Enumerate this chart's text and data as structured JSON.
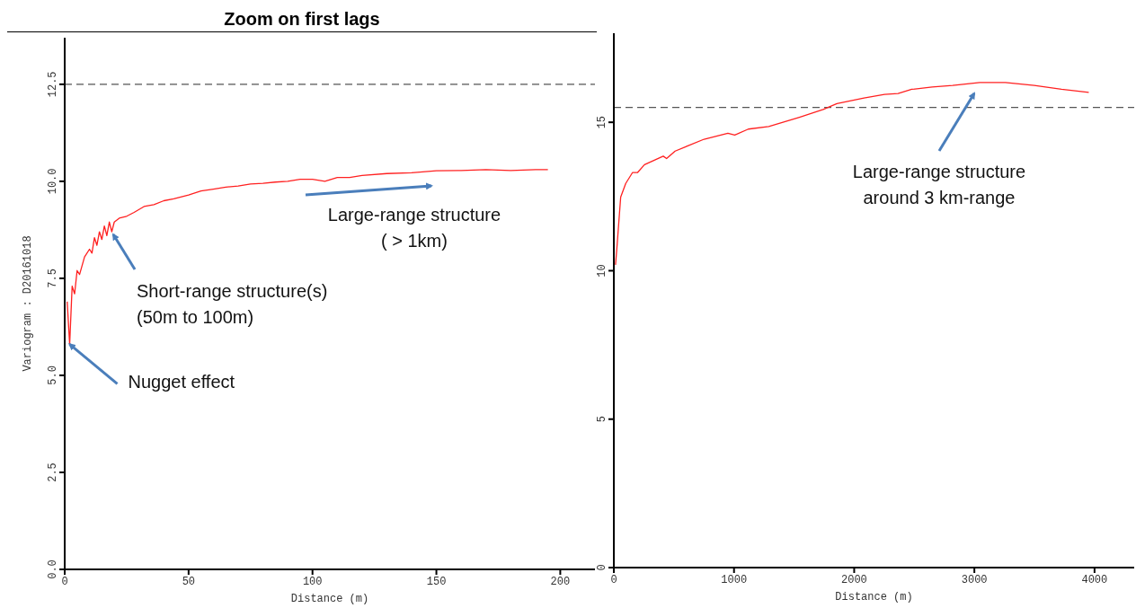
{
  "chart_data": [
    {
      "type": "line",
      "title": "Zoom on first lags",
      "xlabel": "Distance (m)",
      "ylabel": "Variogram : D20161018",
      "xlim": [
        0,
        214
      ],
      "ylim": [
        0,
        13.7
      ],
      "xticks": [
        0,
        50,
        100,
        150,
        200
      ],
      "yticks": [
        {
          "value": 0,
          "label": "0.0"
        },
        {
          "value": 2.5,
          "label": "2.5"
        },
        {
          "value": 5,
          "label": "5.0"
        },
        {
          "value": 7.5,
          "label": "7.5"
        },
        {
          "value": 10,
          "label": "10.0"
        },
        {
          "value": 12.5,
          "label": "12.5"
        }
      ],
      "marker": "none",
      "line_style": "solid",
      "ref_lines": [
        {
          "axis": "y",
          "value": 12.5,
          "color": "#555555",
          "line_style": "dashed"
        }
      ],
      "annotations": [
        {
          "text": "Nugget effect",
          "x": 2,
          "y": 5.8
        },
        {
          "text": "Short-range structure(s)\n(50m to 100m)",
          "x": 19.6,
          "y": 8.63
        },
        "Large-range structure\n( > 1km)"
      ],
      "series": [
        {
          "color": "#ff2020",
          "x": [
            1,
            2,
            3,
            4,
            5,
            6,
            8,
            10,
            11,
            12,
            13,
            14,
            15,
            16,
            17,
            18,
            19,
            20,
            22,
            25,
            28,
            32,
            36,
            40,
            44,
            50,
            55,
            60,
            65,
            70,
            75,
            80,
            85,
            90,
            95,
            100,
            105,
            110,
            115,
            120,
            130,
            140,
            150,
            160,
            170,
            180,
            190,
            195
          ],
          "values": [
            6.9,
            5.8,
            7.3,
            7.1,
            7.7,
            7.6,
            8.05,
            8.25,
            8.15,
            8.55,
            8.35,
            8.7,
            8.5,
            8.85,
            8.6,
            8.95,
            8.7,
            8.95,
            9.05,
            9.1,
            9.2,
            9.35,
            9.4,
            9.5,
            9.55,
            9.65,
            9.75,
            9.8,
            9.85,
            9.88,
            9.93,
            9.95,
            9.98,
            10.0,
            10.05,
            10.05,
            10.0,
            10.1,
            10.1,
            10.15,
            10.2,
            10.22,
            10.27,
            10.28,
            10.3,
            10.28,
            10.3,
            10.3
          ]
        }
      ]
    },
    {
      "type": "line",
      "xlabel": "Distance (m)",
      "xlim": [
        0,
        4330
      ],
      "ylim": [
        0,
        18
      ],
      "xticks": [
        0,
        1000,
        2000,
        3000,
        4000
      ],
      "yticks": [
        0,
        5,
        10,
        15
      ],
      "marker": "none",
      "line_style": "solid",
      "ref_lines": [
        {
          "axis": "y",
          "value": 15.5,
          "color": "#555555",
          "line_style": "dashed"
        }
      ],
      "annotations": [
        "Large-range structure\naround 3 km-range"
      ],
      "series": [
        {
          "color": "#ff2020",
          "x": [
            14,
            28,
            57,
            99,
            156,
            198,
            255,
            411,
            439,
            510,
            751,
            949,
            1006,
            1119,
            1289,
            1544,
            1742,
            1856,
            2082,
            2252,
            2365,
            2479,
            2649,
            2819,
            3045,
            3258,
            3499,
            3725,
            3952
          ],
          "values": [
            10.2,
            10.9,
            12.48,
            12.94,
            13.31,
            13.31,
            13.57,
            13.86,
            13.78,
            14.03,
            14.43,
            14.63,
            14.57,
            14.77,
            14.86,
            15.17,
            15.43,
            15.63,
            15.82,
            15.94,
            15.97,
            16.11,
            16.19,
            16.24,
            16.34,
            16.34,
            16.24,
            16.11,
            16.01
          ]
        }
      ]
    }
  ]
}
